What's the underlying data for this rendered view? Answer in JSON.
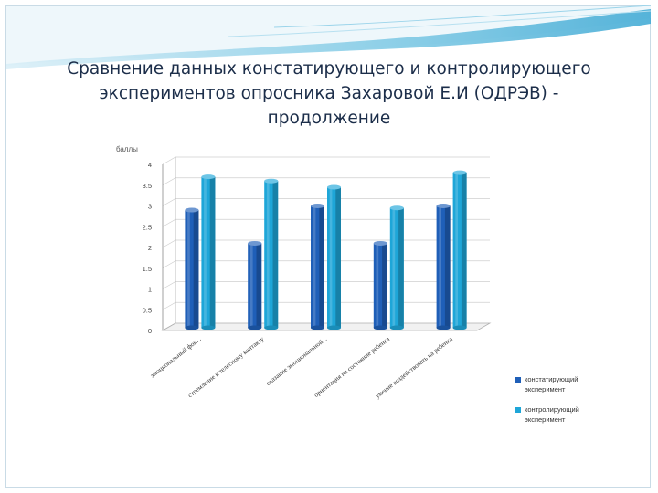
{
  "slide": {
    "title_lines": [
      "Сравнение данных констатирующего и контролирующего",
      "экспериментов опросника Захаровой Е.И (ОДРЭВ) -",
      "продолжение"
    ],
    "colors": {
      "title": "#1c2e4a",
      "header_wave": "#4fb6d9",
      "frame": "#c9dbe6"
    }
  },
  "chart_data": {
    "type": "bar",
    "title": "",
    "ylabel": "баллы",
    "xlabel": "",
    "ylim": [
      0,
      4
    ],
    "yticks": [
      "0",
      "0.5",
      "1",
      "1.5",
      "2",
      "2.5",
      "3",
      "3.5",
      "4"
    ],
    "grid": true,
    "legend_position": "bottom-right",
    "categories": [
      "эмоциональный фон...",
      "стремление к телесному контакту",
      "оказание эмоциональной...",
      "ориентация на состояние ребенка",
      "умение воздействовать на ребенка"
    ],
    "series": [
      {
        "name": "констатирующий эксперимент",
        "values": [
          2.9,
          2.1,
          3.0,
          2.1,
          3.0
        ],
        "color": "#1f5fb8"
      },
      {
        "name": "контролирующий эксперимент",
        "values": [
          3.7,
          3.6,
          3.45,
          2.95,
          3.8
        ],
        "color": "#1ea6d8"
      }
    ]
  }
}
